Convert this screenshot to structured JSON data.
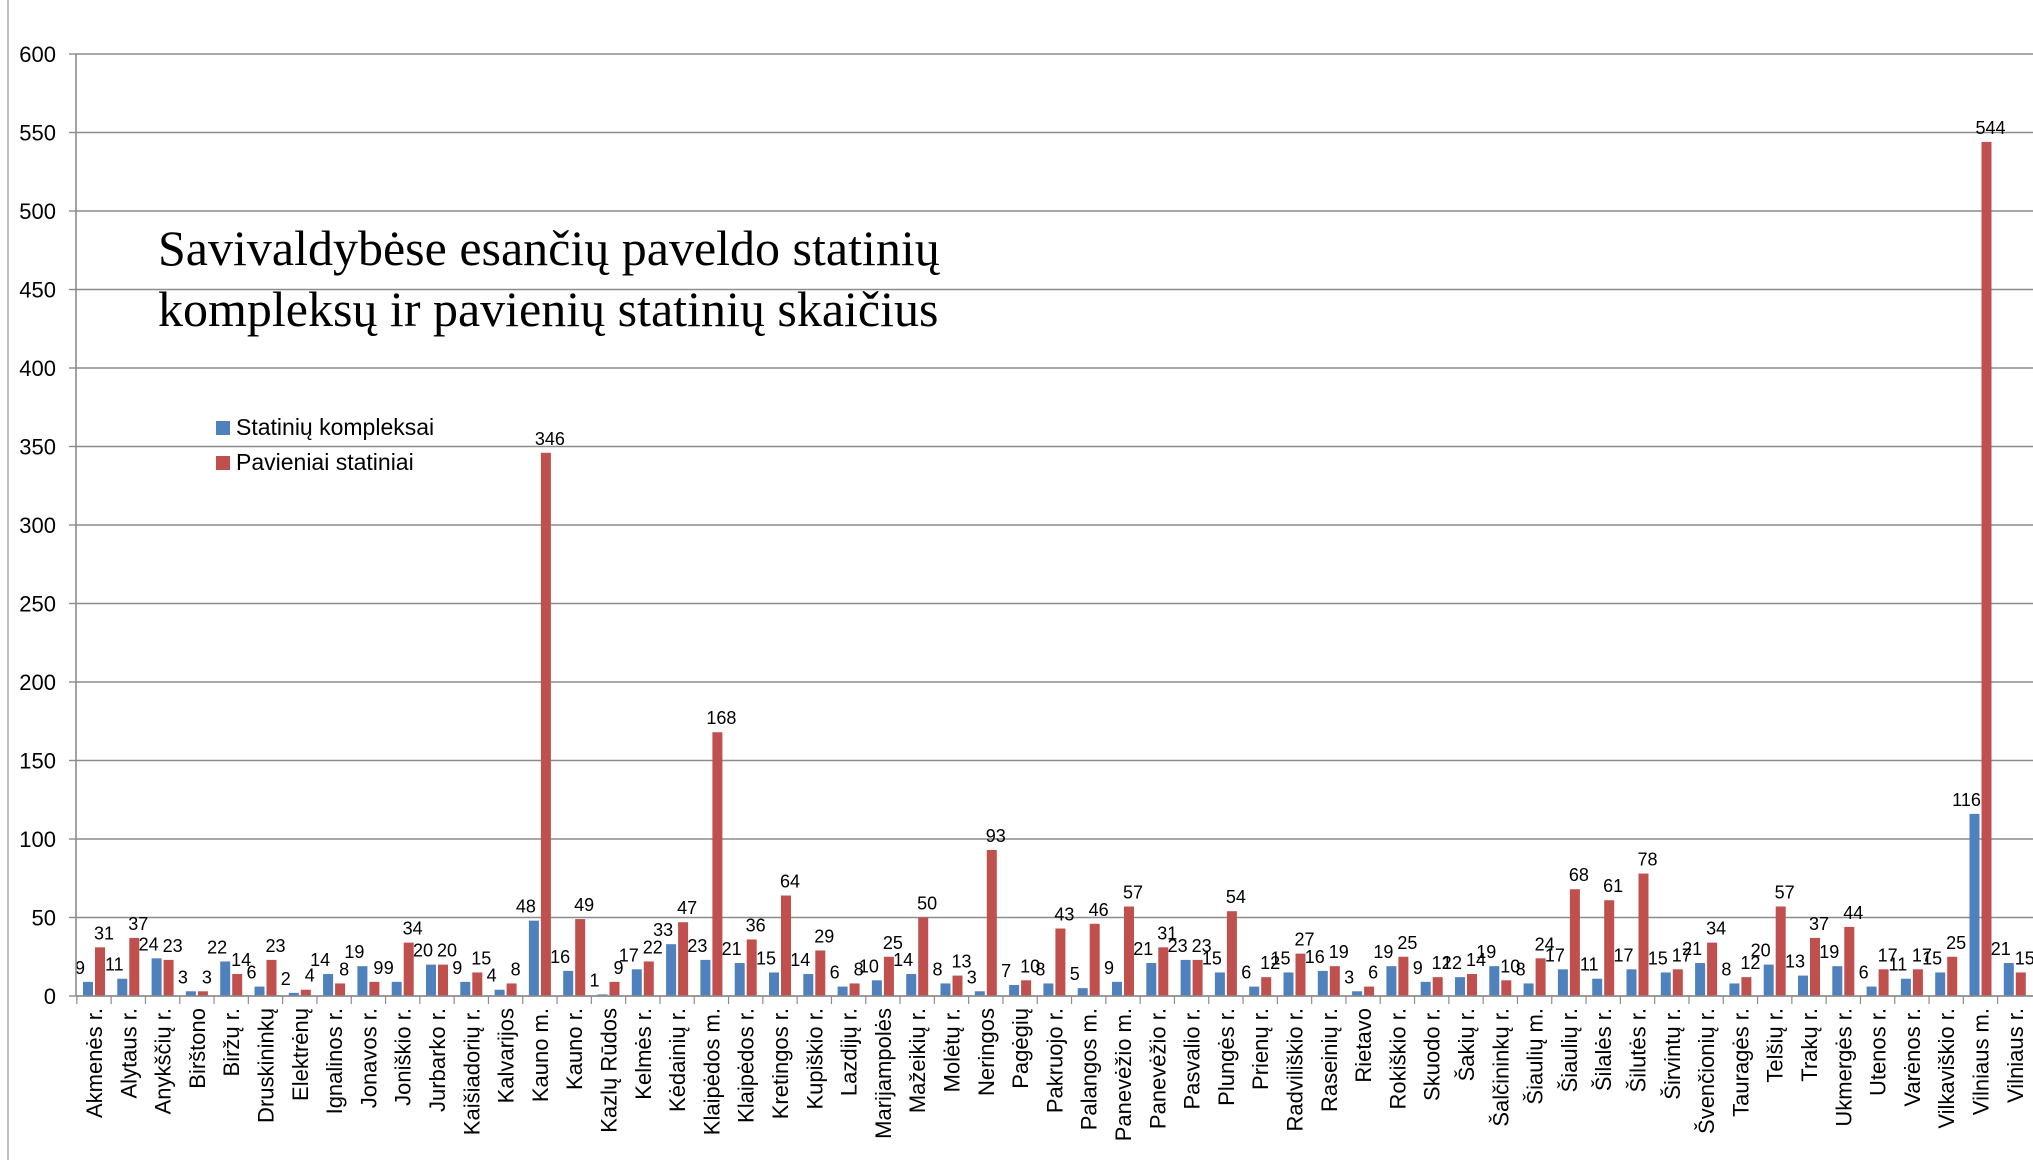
{
  "chart_data": {
    "type": "bar",
    "title": "Savivaldybėse esančių paveldo statinių\nkompleksų ir pavienių statinių skaičius",
    "xlabel": "",
    "ylabel": "",
    "ylim": [
      0,
      600
    ],
    "yticks": [
      0,
      50,
      100,
      150,
      200,
      250,
      300,
      350,
      400,
      450,
      500,
      550,
      600
    ],
    "grid": true,
    "legend_position": "left",
    "categories": [
      "Akmenės r.",
      "Alytaus r.",
      "Anykščių r.",
      "Birštono",
      "Biržų r.",
      "Druskininkų",
      "Elektrėnų",
      "Ignalinos r.",
      "Jonavos r.",
      "Joniškio r.",
      "Jurbarko r.",
      "Kaišiadorių r.",
      "Kalvarijos",
      "Kauno m.",
      "Kauno r.",
      "Kazlų Rūdos",
      "Kelmės r.",
      "Kėdainių r.",
      "Klaipėdos m.",
      "Klaipėdos r.",
      "Kretingos r.",
      "Kupiškio r.",
      "Lazdijų r.",
      "Marijampolės",
      "Mažeikių r.",
      "Molėtų r.",
      "Neringos",
      "Pagėgių",
      "Pakruojo r.",
      "Palangos m.",
      "Panevėžio m.",
      "Panevėžio r.",
      "Pasvalio r.",
      "Plungės r.",
      "Prienų r.",
      "Radviliškio r.",
      "Raseinių r.",
      "Rietavo",
      "Rokiškio r.",
      "Skuodo r.",
      "Šakių r.",
      "Šalčininkų r.",
      "Šiaulių m.",
      "Šiaulių r.",
      "Šilalės r.",
      "Šilutės r.",
      "Širvintų r.",
      "Švenčionių r.",
      "Tauragės r.",
      "Telšių r.",
      "Trakų r.",
      "Ukmergės r.",
      "Utenos r.",
      "Varėnos r.",
      "Vilkaviškio r.",
      "Vilniaus m.",
      "Vilniaus r."
    ],
    "series": [
      {
        "name": "Statinių kompleksai",
        "color": "#4f81bd",
        "values": [
          9,
          11,
          24,
          3,
          22,
          6,
          2,
          14,
          19,
          9,
          20,
          9,
          4,
          48,
          16,
          1,
          17,
          33,
          23,
          21,
          15,
          14,
          6,
          10,
          14,
          8,
          3,
          7,
          8,
          5,
          9,
          21,
          23,
          15,
          6,
          15,
          16,
          3,
          19,
          9,
          12,
          19,
          8,
          17,
          11,
          17,
          15,
          21,
          8,
          20,
          13,
          19,
          6,
          11,
          15,
          116,
          21
        ]
      },
      {
        "name": "Pavieniai statiniai",
        "color": "#c0504d",
        "values": [
          31,
          37,
          23,
          3,
          14,
          23,
          4,
          8,
          9,
          34,
          20,
          15,
          8,
          346,
          49,
          9,
          22,
          47,
          168,
          36,
          64,
          29,
          8,
          25,
          50,
          13,
          93,
          10,
          43,
          46,
          57,
          31,
          23,
          54,
          12,
          27,
          19,
          6,
          25,
          12,
          14,
          10,
          24,
          68,
          61,
          78,
          17,
          34,
          12,
          57,
          37,
          44,
          17,
          17,
          25,
          544,
          15
        ]
      }
    ]
  }
}
